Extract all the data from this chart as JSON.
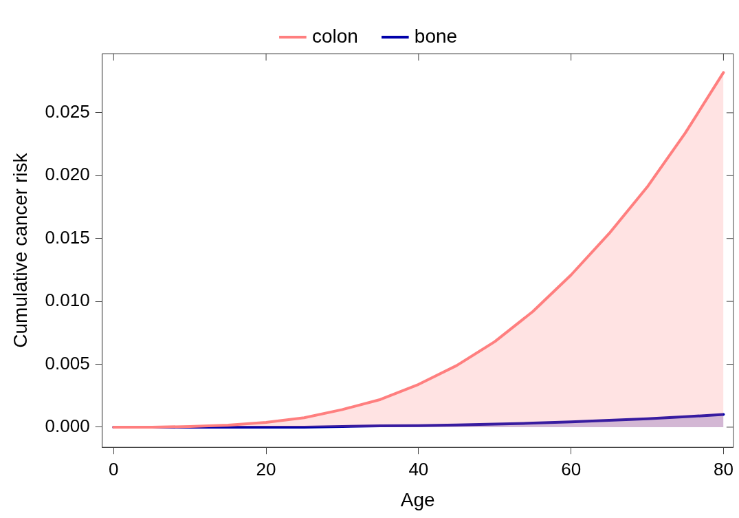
{
  "chart_data": {
    "type": "area",
    "xlabel": "Age",
    "ylabel": "Cumulative cancer risk",
    "legend": "top",
    "grid": false,
    "x": [
      0,
      5,
      10,
      15,
      20,
      25,
      30,
      35,
      40,
      45,
      50,
      55,
      60,
      65,
      70,
      75,
      80
    ],
    "series": [
      {
        "name": "colon",
        "color": "#ff7f7f",
        "values": [
          0,
          0,
          5e-05,
          0.00016,
          0.00038,
          0.00075,
          0.0014,
          0.0022,
          0.0034,
          0.0049,
          0.0068,
          0.0092,
          0.0121,
          0.0154,
          0.0191,
          0.0234,
          0.0282
        ]
      },
      {
        "name": "bone",
        "color": "#0000aa",
        "values": [
          0,
          0,
          0,
          0,
          0,
          0,
          5e-05,
          0.0001,
          0.00012,
          0.00017,
          0.00024,
          0.00032,
          0.00042,
          0.00054,
          0.00067,
          0.00083,
          0.00101
        ]
      }
    ],
    "xlim": [
      -1.5,
      81.3
    ],
    "xticks": [
      0,
      20,
      40,
      60,
      80
    ],
    "ylim": [
      -0.0016,
      0.0297
    ],
    "yticks": [
      {
        "value": 0,
        "label": "0.000"
      },
      0.005,
      {
        "value": 0.01,
        "label": "0.010"
      },
      0.015,
      {
        "value": 0.02,
        "label": "0.020"
      },
      0.025
    ]
  }
}
